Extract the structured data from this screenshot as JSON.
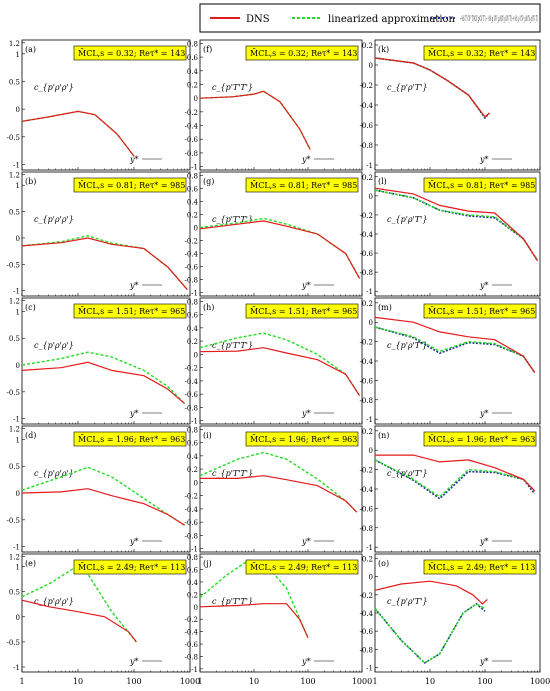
{
  "legend": {
    "dns": "DNS",
    "linear": "linearized approximation",
    "model_text": "−⅓S_T′ CV²_T′/(CV_p′CV_T′) − ⅓S_p′ CV²_ρ′/(CV_ρ′CV_T′) + ⅓S_ρ′ CV²_ρ′/(CV_ρ′CV_T′)"
  },
  "colors": {
    "dns": "#e41a1c",
    "linear": "#22dd22",
    "model": "#1f2f8f",
    "box": "#ffff00"
  },
  "axes": {
    "x_tick_labels": [
      "1",
      "10",
      "100",
      "1000"
    ],
    "x_label": "y*",
    "col1_yticks": [
      "1.2",
      "1",
      "0.5",
      "0",
      "-0.5",
      "-1"
    ],
    "col2_yticks": [
      "0.8",
      "0.6",
      "0.4",
      "0.2",
      "0",
      "-0.2",
      "-0.4",
      "-0.6",
      "-0.8",
      "-1"
    ],
    "col3_yticks": [
      "0.2",
      "0",
      "-0.2",
      "-0.4",
      "-0.6",
      "-0.8",
      "-1"
    ]
  },
  "chart_data": [
    {
      "label": "(a)",
      "ylabel": "c_{p'ρ'ρ'}",
      "box": "M̄CL,s = 0.32; Reτ* = 143",
      "xmax": 150,
      "dns": [
        [
          1,
          -0.22
        ],
        [
          3,
          -0.14
        ],
        [
          10,
          -0.04
        ],
        [
          20,
          -0.1
        ],
        [
          50,
          -0.45
        ],
        [
          100,
          -0.85
        ]
      ],
      "lin": [
        [
          1,
          -0.22
        ],
        [
          3,
          -0.14
        ],
        [
          10,
          -0.04
        ],
        [
          20,
          -0.1
        ],
        [
          50,
          -0.45
        ],
        [
          100,
          -0.85
        ]
      ]
    },
    {
      "label": "(b)",
      "ylabel": "c_{p'ρ'ρ'}",
      "box": "M̄CL,s = 0.81; Reτ* = 985",
      "xmax": 1000,
      "dns": [
        [
          1,
          -0.15
        ],
        [
          5,
          -0.09
        ],
        [
          15,
          0.0
        ],
        [
          40,
          -0.12
        ],
        [
          150,
          -0.2
        ],
        [
          400,
          -0.55
        ],
        [
          900,
          -0.98
        ]
      ],
      "lin": [
        [
          1,
          -0.15
        ],
        [
          5,
          -0.07
        ],
        [
          15,
          0.04
        ],
        [
          40,
          -0.1
        ],
        [
          150,
          -0.2
        ],
        [
          400,
          -0.55
        ],
        [
          900,
          -0.98
        ]
      ]
    },
    {
      "label": "(c)",
      "ylabel": "c_{p'ρ'ρ'}",
      "box": "M̄CL,s = 1.51; Reτ* = 965",
      "xmax": 1000,
      "dns": [
        [
          1,
          -0.1
        ],
        [
          5,
          -0.05
        ],
        [
          15,
          0.05
        ],
        [
          40,
          -0.1
        ],
        [
          150,
          -0.2
        ],
        [
          400,
          -0.45
        ],
        [
          800,
          -0.72
        ]
      ],
      "lin": [
        [
          1,
          0.0
        ],
        [
          5,
          0.12
        ],
        [
          15,
          0.24
        ],
        [
          40,
          0.15
        ],
        [
          150,
          -0.1
        ],
        [
          400,
          -0.4
        ],
        [
          800,
          -0.72
        ]
      ]
    },
    {
      "label": "(d)",
      "ylabel": "c_{p'ρ'ρ'}",
      "box": "M̄CL,s = 1.96; Reτ* = 963",
      "xmax": 1000,
      "dns": [
        [
          1,
          0.0
        ],
        [
          5,
          0.02
        ],
        [
          15,
          0.08
        ],
        [
          40,
          -0.05
        ],
        [
          150,
          -0.2
        ],
        [
          400,
          -0.4
        ],
        [
          800,
          -0.6
        ]
      ],
      "lin": [
        [
          1,
          0.05
        ],
        [
          5,
          0.3
        ],
        [
          15,
          0.48
        ],
        [
          40,
          0.3
        ],
        [
          150,
          -0.1
        ],
        [
          400,
          -0.4
        ],
        [
          800,
          -0.6
        ]
      ]
    },
    {
      "label": "(e)",
      "ylabel": "c_{p'ρ'ρ'}",
      "box": "M̄CL,s = 2.49; Reτ* = 113",
      "xmax": 120,
      "dns": [
        [
          1,
          0.33
        ],
        [
          3,
          0.2
        ],
        [
          10,
          0.1
        ],
        [
          30,
          0.0
        ],
        [
          80,
          -0.3
        ],
        [
          110,
          -0.5
        ]
      ],
      "lin": [
        [
          1,
          0.4
        ],
        [
          3,
          0.65
        ],
        [
          8,
          0.95
        ],
        [
          15,
          0.85
        ],
        [
          40,
          0.1
        ],
        [
          110,
          -0.5
        ]
      ]
    },
    {
      "label": "(f)",
      "ylabel": "c_{p'T'T'}",
      "box": "M̄CL,s = 0.32; Reτ* = 143",
      "xmax": 150,
      "dns": [
        [
          1,
          0.0
        ],
        [
          4,
          0.02
        ],
        [
          10,
          0.06
        ],
        [
          15,
          0.1
        ],
        [
          30,
          -0.05
        ],
        [
          70,
          -0.45
        ],
        [
          110,
          -0.75
        ]
      ],
      "lin": [
        [
          1,
          0.0
        ],
        [
          4,
          0.02
        ],
        [
          10,
          0.06
        ],
        [
          15,
          0.1
        ],
        [
          30,
          -0.05
        ],
        [
          70,
          -0.45
        ],
        [
          110,
          -0.75
        ]
      ]
    },
    {
      "label": "(g)",
      "ylabel": "c_{p'T'T'}",
      "box": "M̄CL,s = 0.81; Reτ* = 985",
      "xmax": 1000,
      "dns": [
        [
          1,
          -0.02
        ],
        [
          5,
          0.05
        ],
        [
          15,
          0.1
        ],
        [
          40,
          0.02
        ],
        [
          150,
          -0.1
        ],
        [
          500,
          -0.4
        ],
        [
          900,
          -0.78
        ]
      ],
      "lin": [
        [
          1,
          0.0
        ],
        [
          5,
          0.07
        ],
        [
          15,
          0.14
        ],
        [
          40,
          0.05
        ],
        [
          150,
          -0.1
        ],
        [
          500,
          -0.4
        ],
        [
          900,
          -0.78
        ]
      ]
    },
    {
      "label": "(h)",
      "ylabel": "c_{p'T'T'}",
      "box": "M̄CL,s = 1.51; Reτ* = 965",
      "xmax": 1000,
      "dns": [
        [
          1,
          0.04
        ],
        [
          5,
          0.05
        ],
        [
          15,
          0.1
        ],
        [
          40,
          0.02
        ],
        [
          150,
          -0.08
        ],
        [
          500,
          -0.3
        ],
        [
          900,
          -0.62
        ]
      ],
      "lin": [
        [
          1,
          0.1
        ],
        [
          5,
          0.25
        ],
        [
          15,
          0.32
        ],
        [
          40,
          0.22
        ],
        [
          150,
          0.0
        ],
        [
          500,
          -0.3
        ],
        [
          900,
          -0.62
        ]
      ]
    },
    {
      "label": "(i)",
      "ylabel": "c_{p'T'T'}",
      "box": "M̄CL,s = 1.96; Reτ* = 963",
      "xmax": 1000,
      "dns": [
        [
          1,
          0.06
        ],
        [
          5,
          0.06
        ],
        [
          15,
          0.1
        ],
        [
          40,
          0.04
        ],
        [
          150,
          -0.05
        ],
        [
          500,
          -0.28
        ],
        [
          800,
          -0.45
        ]
      ],
      "lin": [
        [
          1,
          0.1
        ],
        [
          5,
          0.35
        ],
        [
          15,
          0.45
        ],
        [
          40,
          0.35
        ],
        [
          150,
          0.05
        ],
        [
          500,
          -0.28
        ],
        [
          800,
          -0.45
        ]
      ]
    },
    {
      "label": "(j)",
      "ylabel": "c_{p'T'T'}",
      "box": "M̄CL,s = 2.49; Reτ* = 113",
      "xmax": 120,
      "dns": [
        [
          1,
          0.0
        ],
        [
          5,
          0.02
        ],
        [
          15,
          0.05
        ],
        [
          40,
          0.05
        ],
        [
          70,
          -0.2
        ],
        [
          100,
          -0.5
        ]
      ],
      "lin": [
        [
          1,
          0.15
        ],
        [
          3,
          0.5
        ],
        [
          8,
          0.75
        ],
        [
          15,
          0.72
        ],
        [
          40,
          0.3
        ],
        [
          100,
          -0.5
        ]
      ]
    },
    {
      "label": "(k)",
      "ylabel": "c_{p'ρ'T'}",
      "box": "M̄CL,s = 0.32; Reτ* = 143",
      "xmax": 150,
      "dns": [
        [
          1,
          0.07
        ],
        [
          5,
          0.02
        ],
        [
          10,
          -0.05
        ],
        [
          20,
          -0.15
        ],
        [
          50,
          -0.3
        ],
        [
          100,
          -0.52
        ],
        [
          120,
          -0.48
        ]
      ],
      "lin": [
        [
          1,
          0.07
        ],
        [
          5,
          0.02
        ],
        [
          10,
          -0.05
        ],
        [
          20,
          -0.15
        ],
        [
          50,
          -0.3
        ],
        [
          100,
          -0.52
        ],
        [
          120,
          -0.48
        ]
      ],
      "mod": [
        [
          1,
          0.07
        ],
        [
          5,
          0.02
        ],
        [
          10,
          -0.05
        ],
        [
          20,
          -0.15
        ],
        [
          50,
          -0.3
        ],
        [
          100,
          -0.53
        ],
        [
          120,
          -0.48
        ]
      ]
    },
    {
      "label": "(l)",
      "ylabel": "c_{p'ρ'T'}",
      "box": "M̄CL,s = 0.81; Reτ* = 985",
      "xmax": 1000,
      "dns": [
        [
          1,
          0.08
        ],
        [
          5,
          0.02
        ],
        [
          15,
          -0.1
        ],
        [
          50,
          -0.16
        ],
        [
          150,
          -0.18
        ],
        [
          500,
          -0.45
        ],
        [
          900,
          -0.68
        ]
      ],
      "lin": [
        [
          1,
          0.06
        ],
        [
          5,
          -0.02
        ],
        [
          15,
          -0.15
        ],
        [
          50,
          -0.2
        ],
        [
          150,
          -0.22
        ],
        [
          500,
          -0.45
        ],
        [
          900,
          -0.68
        ]
      ],
      "mod": [
        [
          1,
          0.06
        ],
        [
          5,
          -0.02
        ],
        [
          15,
          -0.15
        ],
        [
          50,
          -0.21
        ],
        [
          150,
          -0.23
        ],
        [
          500,
          -0.45
        ],
        [
          900,
          -0.68
        ]
      ]
    },
    {
      "label": "(m)",
      "ylabel": "c_{p'ρ'T'}",
      "box": "M̄CL,s = 1.51; Reτ* = 965",
      "xmax": 1000,
      "dns": [
        [
          1,
          0.05
        ],
        [
          5,
          0.0
        ],
        [
          15,
          -0.1
        ],
        [
          50,
          -0.15
        ],
        [
          150,
          -0.18
        ],
        [
          500,
          -0.35
        ],
        [
          800,
          -0.52
        ]
      ],
      "lin": [
        [
          1,
          -0.05
        ],
        [
          5,
          -0.15
        ],
        [
          15,
          -0.3
        ],
        [
          50,
          -0.2
        ],
        [
          150,
          -0.22
        ],
        [
          500,
          -0.35
        ],
        [
          800,
          -0.52
        ]
      ],
      "mod": [
        [
          1,
          -0.05
        ],
        [
          5,
          -0.16
        ],
        [
          15,
          -0.32
        ],
        [
          50,
          -0.21
        ],
        [
          150,
          -0.23
        ],
        [
          500,
          -0.35
        ],
        [
          800,
          -0.52
        ]
      ]
    },
    {
      "label": "(n)",
      "ylabel": "c_{p'ρ'T'}",
      "box": "M̄CL,s = 1.96; Reτ* = 963",
      "xmax": 1000,
      "dns": [
        [
          1,
          -0.05
        ],
        [
          5,
          -0.05
        ],
        [
          15,
          -0.12
        ],
        [
          50,
          -0.1
        ],
        [
          150,
          -0.18
        ],
        [
          500,
          -0.3
        ],
        [
          800,
          -0.42
        ]
      ],
      "lin": [
        [
          1,
          -0.1
        ],
        [
          5,
          -0.3
        ],
        [
          15,
          -0.48
        ],
        [
          50,
          -0.2
        ],
        [
          150,
          -0.22
        ],
        [
          500,
          -0.3
        ],
        [
          800,
          -0.42
        ]
      ],
      "mod": [
        [
          1,
          -0.1
        ],
        [
          5,
          -0.31
        ],
        [
          15,
          -0.5
        ],
        [
          50,
          -0.22
        ],
        [
          150,
          -0.23
        ],
        [
          500,
          -0.3
        ],
        [
          800,
          -0.45
        ]
      ]
    },
    {
      "label": "(o)",
      "ylabel": "c_{p'ρ'T'}",
      "box": "M̄CL,s = 2.49; Reτ* = 113",
      "xmax": 120,
      "dns": [
        [
          1,
          -0.15
        ],
        [
          3,
          -0.08
        ],
        [
          10,
          -0.05
        ],
        [
          30,
          -0.1
        ],
        [
          60,
          -0.2
        ],
        [
          90,
          -0.3
        ],
        [
          110,
          -0.25
        ]
      ],
      "lin": [
        [
          1,
          -0.35
        ],
        [
          3,
          -0.7
        ],
        [
          8,
          -0.95
        ],
        [
          15,
          -0.85
        ],
        [
          40,
          -0.4
        ],
        [
          70,
          -0.3
        ],
        [
          100,
          -0.35
        ]
      ],
      "mod": [
        [
          1,
          -0.35
        ],
        [
          3,
          -0.7
        ],
        [
          8,
          -0.95
        ],
        [
          15,
          -0.85
        ],
        [
          40,
          -0.4
        ],
        [
          70,
          -0.3
        ],
        [
          100,
          -0.38
        ]
      ]
    }
  ]
}
